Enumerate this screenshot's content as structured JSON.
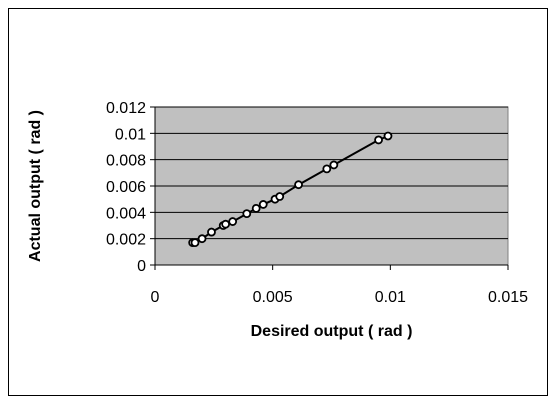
{
  "chart_data": {
    "type": "scatter",
    "title": "",
    "xlabel": "Desired output ( rad )",
    "ylabel": "Actual output ( rad )",
    "xlim": [
      0,
      0.015
    ],
    "ylim": [
      0,
      0.012
    ],
    "x_ticks": [
      "0",
      "0.005",
      "0.01",
      "0.015"
    ],
    "y_ticks": [
      "0",
      "0.002",
      "0.004",
      "0.006",
      "0.008",
      "0.01",
      "0.012"
    ],
    "grid": "horizontal",
    "legend": "none",
    "series": [
      {
        "marker": "open-circle",
        "line": "trend",
        "points": [
          {
            "x": 0.0016,
            "y": 0.0017
          },
          {
            "x": 0.0017,
            "y": 0.0017
          },
          {
            "x": 0.002,
            "y": 0.002
          },
          {
            "x": 0.0024,
            "y": 0.0025
          },
          {
            "x": 0.0029,
            "y": 0.003
          },
          {
            "x": 0.003,
            "y": 0.0031
          },
          {
            "x": 0.0033,
            "y": 0.0033
          },
          {
            "x": 0.0039,
            "y": 0.0039
          },
          {
            "x": 0.0043,
            "y": 0.0043
          },
          {
            "x": 0.0046,
            "y": 0.0046
          },
          {
            "x": 0.0051,
            "y": 0.005
          },
          {
            "x": 0.0053,
            "y": 0.0052
          },
          {
            "x": 0.0061,
            "y": 0.0061
          },
          {
            "x": 0.0073,
            "y": 0.0073
          },
          {
            "x": 0.0076,
            "y": 0.0076
          },
          {
            "x": 0.0095,
            "y": 0.0095
          },
          {
            "x": 0.0099,
            "y": 0.0098
          }
        ]
      }
    ],
    "colors": {
      "plot_background": "#c0c0c0",
      "gridline": "#000000",
      "marker_fill": "#ffffff",
      "marker_stroke": "#000000",
      "line": "#000000"
    }
  }
}
